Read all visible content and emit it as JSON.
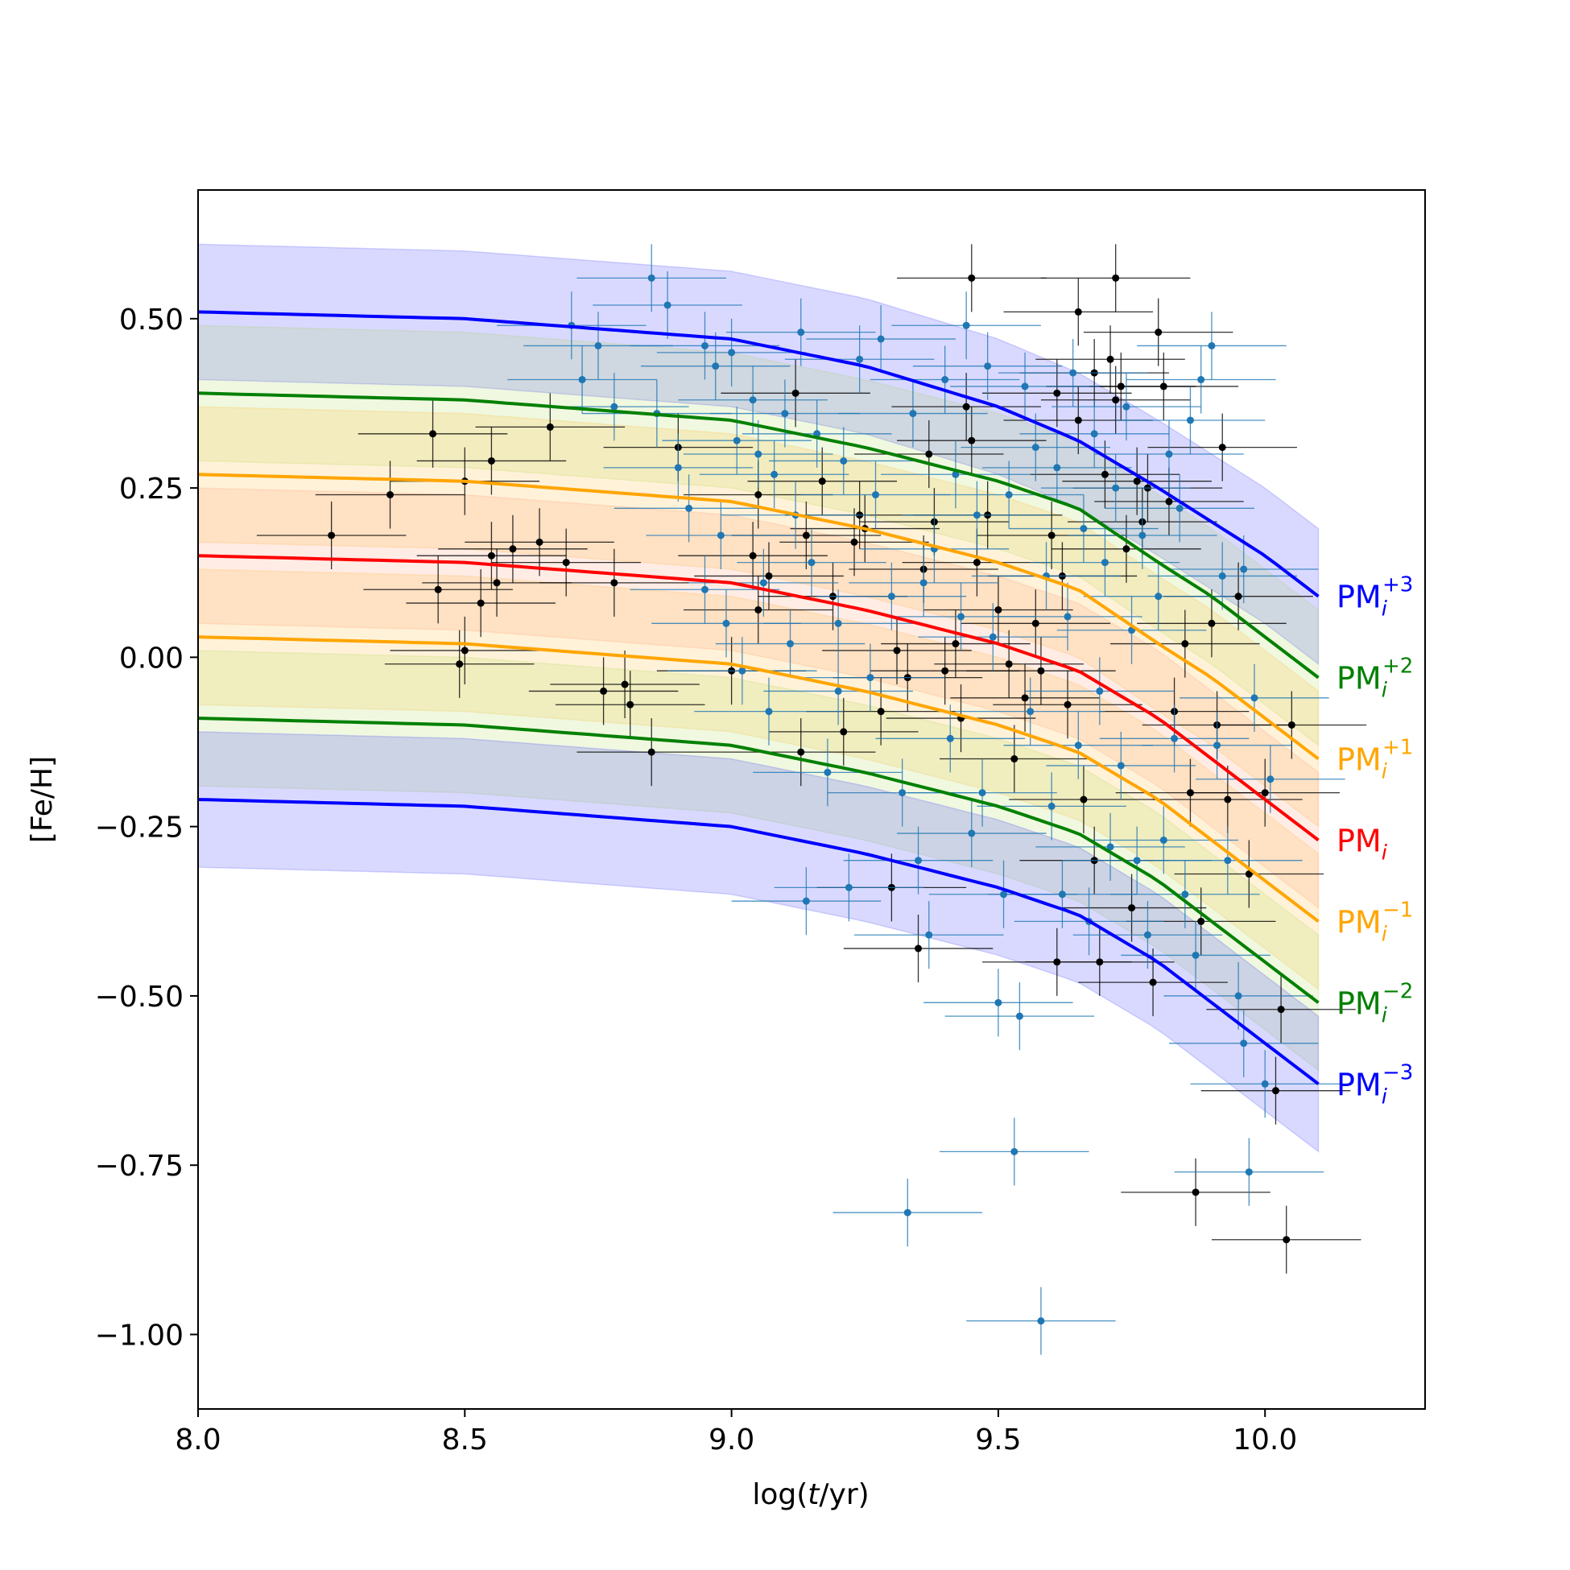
{
  "chart_data": {
    "type": "scatter",
    "title": "",
    "xlabel": "log(t/yr)",
    "xlabel_parts": [
      "log(",
      "t",
      "/yr)"
    ],
    "ylabel": "[Fe/H]",
    "xlim": [
      8.0,
      10.3
    ],
    "ylim": [
      -1.11,
      0.69
    ],
    "x_ticks": [
      8.0,
      8.5,
      9.0,
      9.5,
      10.0
    ],
    "x_tick_labels": [
      "8.0",
      "8.5",
      "9.0",
      "9.5",
      "10.0"
    ],
    "y_ticks": [
      0.5,
      0.25,
      0.0,
      -0.25,
      -0.5,
      -0.75,
      -1.0
    ],
    "y_tick_labels": [
      "0.50",
      "0.25",
      "0.00",
      "−0.25",
      "−0.50",
      "−0.75",
      "−1.00"
    ],
    "grid": false,
    "model_curves": [
      {
        "name": "PM_i^{+3}",
        "label_base": "PM",
        "label_sub": "i",
        "label_sup": "+3",
        "color": "#0000ff",
        "band_color": "#0000ff",
        "x": [
          8.0,
          8.5,
          9.0,
          9.25,
          9.5,
          9.65,
          9.8,
          9.9,
          10.0,
          10.1
        ],
        "y": [
          0.51,
          0.5,
          0.47,
          0.43,
          0.37,
          0.32,
          0.25,
          0.2,
          0.15,
          0.09
        ]
      },
      {
        "name": "PM_i^{+2}",
        "label_base": "PM",
        "label_sub": "i",
        "label_sup": "+2",
        "color": "#008000",
        "band_color": "#9acd32",
        "x": [
          8.0,
          8.5,
          9.0,
          9.25,
          9.5,
          9.65,
          9.8,
          9.9,
          10.0,
          10.1
        ],
        "y": [
          0.39,
          0.38,
          0.35,
          0.31,
          0.26,
          0.22,
          0.14,
          0.09,
          0.03,
          -0.03
        ]
      },
      {
        "name": "PM_i^{+1}",
        "label_base": "PM",
        "label_sub": "i",
        "label_sup": "+1",
        "color": "#ffa500",
        "band_color": "#ffa500",
        "x": [
          8.0,
          8.5,
          9.0,
          9.25,
          9.5,
          9.65,
          9.8,
          9.9,
          10.0,
          10.1
        ],
        "y": [
          0.27,
          0.26,
          0.23,
          0.19,
          0.14,
          0.1,
          0.02,
          -0.03,
          -0.09,
          -0.15
        ]
      },
      {
        "name": "PM_i",
        "label_base": "PM",
        "label_sub": "i",
        "label_sup": "",
        "color": "#ff0000",
        "band_color": "#ff7f50",
        "x": [
          8.0,
          8.5,
          9.0,
          9.25,
          9.5,
          9.65,
          9.8,
          9.9,
          10.0,
          10.1
        ],
        "y": [
          0.15,
          0.14,
          0.11,
          0.07,
          0.02,
          -0.02,
          -0.09,
          -0.15,
          -0.21,
          -0.27
        ]
      },
      {
        "name": "PM_i^{-1}",
        "label_base": "PM",
        "label_sub": "i",
        "label_sup": "−1",
        "color": "#ffa500",
        "band_color": "#ffa500",
        "x": [
          8.0,
          8.5,
          9.0,
          9.25,
          9.5,
          9.65,
          9.8,
          9.9,
          10.0,
          10.1
        ],
        "y": [
          0.03,
          0.02,
          -0.01,
          -0.05,
          -0.1,
          -0.14,
          -0.21,
          -0.27,
          -0.33,
          -0.39
        ]
      },
      {
        "name": "PM_i^{-2}",
        "label_base": "PM",
        "label_sub": "i",
        "label_sup": "−2",
        "color": "#008000",
        "band_color": "#9acd32",
        "x": [
          8.0,
          8.5,
          9.0,
          9.25,
          9.5,
          9.65,
          9.8,
          9.9,
          10.0,
          10.1
        ],
        "y": [
          -0.09,
          -0.1,
          -0.13,
          -0.17,
          -0.22,
          -0.26,
          -0.33,
          -0.39,
          -0.45,
          -0.51
        ]
      },
      {
        "name": "PM_i^{-3}",
        "label_base": "PM",
        "label_sub": "i",
        "label_sup": "−3",
        "color": "#0000ff",
        "band_color": "#0000ff",
        "x": [
          8.0,
          8.5,
          9.0,
          9.25,
          9.5,
          9.65,
          9.8,
          9.9,
          10.0,
          10.1
        ],
        "y": [
          -0.21,
          -0.22,
          -0.25,
          -0.29,
          -0.34,
          -0.38,
          -0.45,
          -0.51,
          -0.57,
          -0.63
        ]
      }
    ],
    "band_half_width": 0.1,
    "errorbars": {
      "xerr": 0.14,
      "yerr": 0.05
    },
    "series": [
      {
        "name": "black points",
        "color": "#000000",
        "points": [
          [
            8.25,
            0.18
          ],
          [
            8.36,
            0.24
          ],
          [
            8.44,
            0.33
          ],
          [
            8.45,
            0.1
          ],
          [
            8.49,
            -0.01
          ],
          [
            8.5,
            0.01
          ],
          [
            8.5,
            0.26
          ],
          [
            8.53,
            0.08
          ],
          [
            8.55,
            0.15
          ],
          [
            8.55,
            0.29
          ],
          [
            8.56,
            0.11
          ],
          [
            8.59,
            0.16
          ],
          [
            8.64,
            0.17
          ],
          [
            8.66,
            0.34
          ],
          [
            8.69,
            0.14
          ],
          [
            8.76,
            -0.05
          ],
          [
            8.78,
            0.11
          ],
          [
            8.8,
            -0.04
          ],
          [
            8.81,
            -0.07
          ],
          [
            8.85,
            -0.14
          ],
          [
            8.9,
            0.31
          ],
          [
            9.04,
            0.15
          ],
          [
            9.05,
            0.24
          ],
          [
            9.07,
            0.12
          ],
          [
            9.12,
            0.39
          ],
          [
            9.13,
            -0.14
          ],
          [
            9.14,
            0.18
          ],
          [
            9.17,
            0.26
          ],
          [
            9.19,
            0.09
          ],
          [
            9.21,
            -0.11
          ],
          [
            9.23,
            0.17
          ],
          [
            9.24,
            0.21
          ],
          [
            9.25,
            0.19
          ],
          [
            9.28,
            -0.08
          ],
          [
            9.3,
            -0.34
          ],
          [
            9.31,
            0.01
          ],
          [
            9.33,
            -0.03
          ],
          [
            9.36,
            0.13
          ],
          [
            9.37,
            0.3
          ],
          [
            9.38,
            0.2
          ],
          [
            9.4,
            -0.02
          ],
          [
            9.42,
            0.02
          ],
          [
            9.43,
            -0.09
          ],
          [
            9.44,
            0.37
          ],
          [
            9.45,
            0.56
          ],
          [
            9.45,
            0.32
          ],
          [
            9.46,
            0.14
          ],
          [
            9.48,
            0.21
          ],
          [
            9.5,
            0.07
          ],
          [
            9.52,
            -0.01
          ],
          [
            9.53,
            -0.15
          ],
          [
            9.55,
            -0.06
          ],
          [
            9.57,
            0.05
          ],
          [
            9.58,
            -0.02
          ],
          [
            9.6,
            0.18
          ],
          [
            9.61,
            0.39
          ],
          [
            9.61,
            -0.45
          ],
          [
            9.62,
            0.12
          ],
          [
            9.63,
            -0.07
          ],
          [
            9.65,
            0.51
          ],
          [
            9.65,
            0.35
          ],
          [
            9.66,
            -0.21
          ],
          [
            9.68,
            0.42
          ],
          [
            9.68,
            -0.3
          ],
          [
            9.69,
            -0.45
          ],
          [
            9.7,
            0.27
          ],
          [
            9.71,
            0.44
          ],
          [
            9.72,
            0.56
          ],
          [
            9.72,
            0.38
          ],
          [
            9.73,
            0.4
          ],
          [
            9.74,
            0.16
          ],
          [
            9.75,
            -0.37
          ],
          [
            9.76,
            0.26
          ],
          [
            9.77,
            0.2
          ],
          [
            9.78,
            0.25
          ],
          [
            9.79,
            -0.48
          ],
          [
            9.8,
            0.48
          ],
          [
            9.81,
            0.4
          ],
          [
            9.82,
            0.23
          ],
          [
            9.83,
            -0.08
          ],
          [
            9.85,
            0.02
          ],
          [
            9.86,
            -0.2
          ],
          [
            9.87,
            -0.79
          ],
          [
            9.88,
            -0.39
          ],
          [
            9.9,
            0.05
          ],
          [
            9.91,
            -0.1
          ],
          [
            9.92,
            0.31
          ],
          [
            9.93,
            -0.21
          ],
          [
            9.95,
            0.09
          ],
          [
            9.97,
            -0.32
          ],
          [
            10.0,
            -0.2
          ],
          [
            10.02,
            -0.64
          ],
          [
            10.03,
            -0.52
          ],
          [
            10.04,
            -0.86
          ],
          [
            10.05,
            -0.1
          ],
          [
            9.35,
            -0.43
          ],
          [
            9.05,
            0.07
          ],
          [
            9.0,
            -0.02
          ]
        ]
      },
      {
        "name": "blue points",
        "color": "#1f77b4",
        "points": [
          [
            8.7,
            0.49
          ],
          [
            8.72,
            0.41
          ],
          [
            8.75,
            0.46
          ],
          [
            8.78,
            0.37
          ],
          [
            8.85,
            0.56
          ],
          [
            8.86,
            0.36
          ],
          [
            8.88,
            0.52
          ],
          [
            8.9,
            0.28
          ],
          [
            8.92,
            0.22
          ],
          [
            8.95,
            0.46
          ],
          [
            8.97,
            0.43
          ],
          [
            8.98,
            0.18
          ],
          [
            8.99,
            0.05
          ],
          [
            9.0,
            0.45
          ],
          [
            9.01,
            0.32
          ],
          [
            9.02,
            -0.02
          ],
          [
            9.04,
            0.38
          ],
          [
            9.05,
            0.3
          ],
          [
            9.06,
            0.11
          ],
          [
            9.07,
            -0.08
          ],
          [
            9.08,
            0.27
          ],
          [
            9.1,
            0.36
          ],
          [
            9.11,
            0.02
          ],
          [
            9.12,
            0.21
          ],
          [
            9.13,
            0.48
          ],
          [
            9.14,
            -0.36
          ],
          [
            9.15,
            0.14
          ],
          [
            9.16,
            0.33
          ],
          [
            9.18,
            -0.17
          ],
          [
            9.2,
            0.05
          ],
          [
            9.21,
            0.29
          ],
          [
            9.22,
            -0.34
          ],
          [
            9.24,
            0.44
          ],
          [
            9.26,
            -0.03
          ],
          [
            9.27,
            0.24
          ],
          [
            9.28,
            0.47
          ],
          [
            9.3,
            0.09
          ],
          [
            9.32,
            -0.2
          ],
          [
            9.33,
            -0.82
          ],
          [
            9.34,
            0.36
          ],
          [
            9.35,
            -0.3
          ],
          [
            9.36,
            0.11
          ],
          [
            9.37,
            -0.41
          ],
          [
            9.38,
            0.16
          ],
          [
            9.4,
            0.41
          ],
          [
            9.41,
            -0.12
          ],
          [
            9.42,
            0.27
          ],
          [
            9.43,
            0.06
          ],
          [
            9.44,
            0.49
          ],
          [
            9.45,
            -0.26
          ],
          [
            9.46,
            0.21
          ],
          [
            9.47,
            -0.2
          ],
          [
            9.48,
            0.43
          ],
          [
            9.49,
            0.03
          ],
          [
            9.5,
            -0.51
          ],
          [
            9.51,
            -0.35
          ],
          [
            9.52,
            0.24
          ],
          [
            9.53,
            -0.73
          ],
          [
            9.54,
            -0.53
          ],
          [
            9.55,
            0.4
          ],
          [
            9.56,
            -0.08
          ],
          [
            9.57,
            0.31
          ],
          [
            9.58,
            -0.98
          ],
          [
            9.59,
            0.12
          ],
          [
            9.6,
            -0.22
          ],
          [
            9.61,
            0.28
          ],
          [
            9.62,
            -0.35
          ],
          [
            9.63,
            0.06
          ],
          [
            9.64,
            0.42
          ],
          [
            9.65,
            -0.13
          ],
          [
            9.66,
            0.19
          ],
          [
            9.67,
            -0.39
          ],
          [
            9.68,
            0.33
          ],
          [
            9.69,
            -0.05
          ],
          [
            9.7,
            0.14
          ],
          [
            9.71,
            -0.28
          ],
          [
            9.72,
            0.25
          ],
          [
            9.73,
            -0.16
          ],
          [
            9.74,
            0.37
          ],
          [
            9.75,
            0.04
          ],
          [
            9.76,
            -0.3
          ],
          [
            9.77,
            0.18
          ],
          [
            9.78,
            -0.41
          ],
          [
            9.8,
            0.09
          ],
          [
            9.81,
            -0.27
          ],
          [
            9.82,
            0.3
          ],
          [
            9.83,
            -0.12
          ],
          [
            9.84,
            0.22
          ],
          [
            9.85,
            -0.35
          ],
          [
            9.86,
            0.35
          ],
          [
            9.87,
            -0.44
          ],
          [
            9.88,
            0.41
          ],
          [
            9.9,
            0.46
          ],
          [
            9.91,
            -0.13
          ],
          [
            9.92,
            0.12
          ],
          [
            9.93,
            -0.3
          ],
          [
            9.95,
            -0.5
          ],
          [
            9.96,
            0.13
          ],
          [
            9.97,
            -0.76
          ],
          [
            9.98,
            -0.06
          ],
          [
            10.0,
            -0.63
          ],
          [
            10.01,
            -0.18
          ],
          [
            9.96,
            -0.57
          ],
          [
            9.2,
            -0.05
          ],
          [
            8.95,
            0.1
          ]
        ]
      }
    ]
  }
}
